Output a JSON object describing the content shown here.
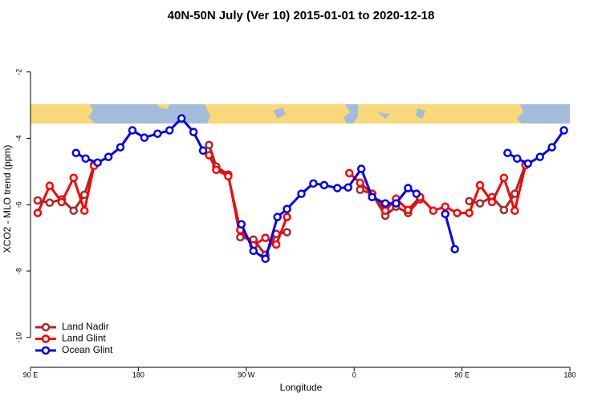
{
  "chart_data": {
    "type": "line",
    "title": "40N-50N July (Ver 10)   2015-01-01 to 2020-12-18",
    "xlabel": "Longitude",
    "ylabel": "XCO2 - MLO trend (ppm)",
    "xlim": [
      90,
      540
    ],
    "ylim": [
      -10.9,
      -0.75
    ],
    "xticks": [
      {
        "value": 90,
        "label": "90 E"
      },
      180,
      {
        "value": 270,
        "label": "90 W"
      },
      {
        "value": 360,
        "label": "0"
      },
      {
        "value": 450,
        "label": "90 E"
      },
      {
        "value": 540,
        "label": "180"
      }
    ],
    "yticks": [
      -2,
      -4,
      -6,
      -8,
      -10
    ],
    "legend": "bottom-left",
    "series": [
      {
        "name": "Land Nadir",
        "color": "#a52a2a",
        "x": [
          96,
          106,
          116,
          126,
          135,
          143,
          null,
          239,
          245,
          255,
          265,
          276,
          286,
          295,
          304,
          null,
          365,
          375,
          386,
          395,
          405,
          415,
          null,
          456,
          465,
          475,
          485,
          494,
          503
        ],
        "values": [
          -5.87,
          -5.94,
          -5.84,
          -6.18,
          -5.7,
          -4.8,
          null,
          -4.2,
          -4.85,
          -5.09,
          -6.98,
          -7.05,
          -7.51,
          -6.88,
          -6.83,
          null,
          -5.55,
          -5.67,
          -6.33,
          -6.06,
          -6.25,
          -5.84,
          null,
          -5.89,
          -5.96,
          -5.77,
          -6.16,
          -5.67,
          -4.78
        ]
      },
      {
        "name": "Land Glint",
        "color": "#ff0000",
        "x": [
          96,
          106,
          116,
          126,
          135,
          143,
          null,
          239,
          245,
          255,
          265,
          276,
          286,
          295,
          304,
          null,
          356,
          365,
          375,
          386,
          395,
          405,
          415,
          426,
          436,
          446,
          456,
          465,
          475,
          485,
          494,
          503
        ],
        "values": [
          -6.25,
          -5.43,
          -5.92,
          -5.19,
          -6.18,
          -4.83,
          null,
          -4.51,
          -4.95,
          -5.14,
          -6.76,
          -7.22,
          -7.0,
          -7.2,
          -6.37,
          null,
          -5.05,
          -5.34,
          -5.67,
          -6.18,
          -5.82,
          -6.16,
          -5.77,
          -6.18,
          -6.06,
          -6.25,
          -6.25,
          -5.41,
          -5.92,
          -5.19,
          -6.18,
          -4.81
        ]
      },
      {
        "name": "Ocean Glint",
        "color": "#0000ee",
        "x": [
          128,
          136,
          146,
          155,
          165,
          175,
          185,
          196,
          206,
          216,
          226,
          234,
          null,
          266,
          276,
          286,
          296,
          304,
          316,
          326,
          335,
          346,
          355,
          366,
          375,
          386,
          395,
          405,
          412,
          null,
          436,
          444,
          null,
          488,
          496,
          505,
          515,
          525,
          535
        ],
        "values": [
          -4.44,
          -4.61,
          -4.73,
          -4.56,
          -4.27,
          -3.76,
          -3.98,
          -3.86,
          -3.76,
          -3.4,
          -3.81,
          -4.37,
          null,
          -6.59,
          -7.39,
          -7.63,
          -6.37,
          -6.13,
          -5.67,
          -5.36,
          -5.41,
          -5.5,
          -5.48,
          -4.92,
          -5.77,
          -5.96,
          -5.96,
          -5.5,
          -5.67,
          null,
          -6.28,
          -7.34,
          null,
          -4.44,
          -4.61,
          -4.76,
          -4.56,
          -4.27,
          -3.76
        ]
      }
    ]
  }
}
